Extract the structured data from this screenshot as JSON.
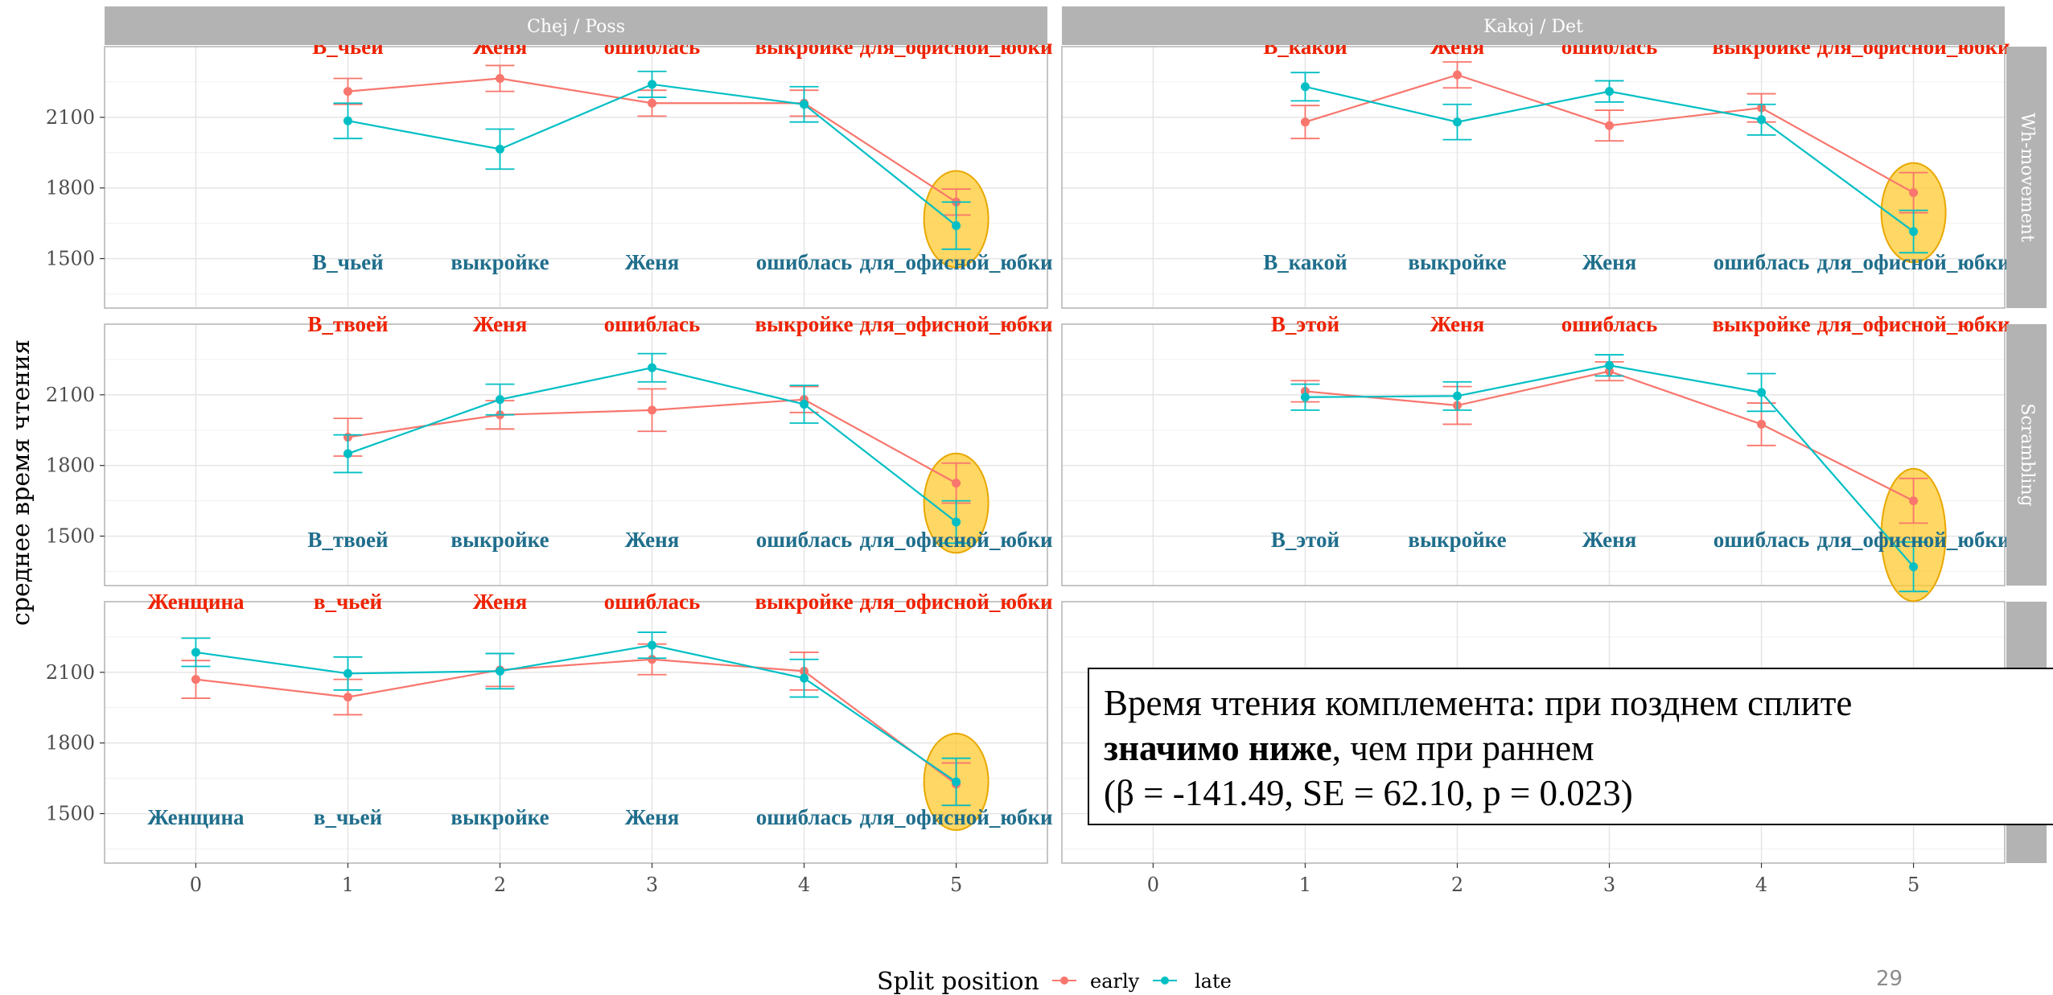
{
  "chart_data": {
    "type": "line",
    "ylabel": "среднее время чтения",
    "x_ticks": [
      0,
      1,
      2,
      3,
      4,
      5
    ],
    "y_ticks": [
      1500,
      1800,
      2100
    ],
    "xlim": [
      -0.6,
      5.6
    ],
    "ylim": [
      1290,
      2400
    ],
    "colors": {
      "early": "#F8766D",
      "late": "#00BFC4"
    },
    "legend": {
      "title": "Split position",
      "placement": "bottom",
      "items": [
        "early",
        "late"
      ]
    },
    "column_strips": [
      "Chej / Poss",
      "Kakoj / Det"
    ],
    "row_strips": [
      "Wh-movement",
      "Scrambling",
      ""
    ],
    "panels": [
      {
        "row": 0,
        "col": 0,
        "x": [
          1,
          2,
          3,
          4,
          5
        ],
        "series": [
          {
            "name": "early",
            "values": [
              2210,
              2265,
              2160,
              2160,
              1740
            ],
            "err": [
              55,
              55,
              55,
              55,
              55
            ]
          },
          {
            "name": "late",
            "values": [
              2085,
              1965,
              2240,
              2155,
              1640
            ],
            "err": [
              75,
              85,
              55,
              75,
              100
            ]
          }
        ],
        "top_words": [
          "В_чьей",
          "Женя",
          "ошиблась",
          "выкройке",
          "для_офисной_юбки"
        ],
        "bottom_words": [
          "В_чьей",
          "выкройке",
          "Женя",
          "ошиблась",
          "для_офисной_юбки"
        ]
      },
      {
        "row": 0,
        "col": 1,
        "x": [
          1,
          2,
          3,
          4,
          5
        ],
        "series": [
          {
            "name": "early",
            "values": [
              2080,
              2280,
              2065,
              2140,
              1780
            ],
            "err": [
              70,
              55,
              65,
              60,
              85
            ]
          },
          {
            "name": "late",
            "values": [
              2230,
              2080,
              2210,
              2090,
              1615
            ],
            "err": [
              60,
              75,
              45,
              65,
              90
            ]
          }
        ],
        "top_words": [
          "В_какой",
          "Женя",
          "ошиблась",
          "выкройке",
          "для_офисной_юбки"
        ],
        "bottom_words": [
          "В_какой",
          "выкройке",
          "Женя",
          "ошиблась",
          "для_офисной_юбки"
        ]
      },
      {
        "row": 1,
        "col": 0,
        "x": [
          1,
          2,
          3,
          4,
          5
        ],
        "series": [
          {
            "name": "early",
            "values": [
              1920,
              2015,
              2035,
              2080,
              1725
            ],
            "err": [
              80,
              60,
              90,
              55,
              85
            ]
          },
          {
            "name": "late",
            "values": [
              1850,
              2080,
              2215,
              2060,
              1560
            ],
            "err": [
              80,
              65,
              60,
              80,
              90
            ]
          }
        ],
        "top_words": [
          "В_твоей",
          "Женя",
          "ошиблась",
          "выкройке",
          "для_офисной_юбки"
        ],
        "bottom_words": [
          "В_твоей",
          "выкройке",
          "Женя",
          "ошиблась",
          "для_офисной_юбки"
        ]
      },
      {
        "row": 1,
        "col": 1,
        "x": [
          1,
          2,
          3,
          4,
          5
        ],
        "series": [
          {
            "name": "early",
            "values": [
              2115,
              2055,
              2200,
              1975,
              1650
            ],
            "err": [
              45,
              80,
              40,
              90,
              95
            ]
          },
          {
            "name": "late",
            "values": [
              2090,
              2095,
              2225,
              2110,
              1370
            ],
            "err": [
              55,
              60,
              45,
              80,
              105
            ]
          }
        ],
        "top_words": [
          "В_этой",
          "Женя",
          "ошиблась",
          "выкройке",
          "для_офисной_юбки"
        ],
        "bottom_words": [
          "В_этой",
          "выкройке",
          "Женя",
          "ошиблась",
          "для_офисной_юбки"
        ]
      },
      {
        "row": 2,
        "col": 0,
        "x": [
          0,
          1,
          2,
          3,
          4,
          5
        ],
        "series": [
          {
            "name": "early",
            "values": [
              2070,
              1995,
              2110,
              2155,
              2105,
              1625
            ],
            "err": [
              80,
              75,
              70,
              65,
              80,
              90
            ]
          },
          {
            "name": "late",
            "values": [
              2185,
              2095,
              2105,
              2215,
              2075,
              1635
            ],
            "err": [
              60,
              70,
              75,
              55,
              80,
              100
            ]
          }
        ],
        "top_words": [
          "Женщина",
          "в_чьей",
          "Женя",
          "ошиблась",
          "выкройке",
          "для_офисной_юбки"
        ],
        "bottom_words": [
          "Женщина",
          "в_чьей",
          "выкройке",
          "Женя",
          "ошиблась",
          "для_офисной_юбки"
        ]
      }
    ],
    "annotation": {
      "line1": "Время чтения комплемента: при позднем сплите",
      "line2_bold": "значимо ниже",
      "line2_rest": ", чем при раннем",
      "line3": "(β = -141.49, SE = 62.10, p = 0.023)"
    }
  },
  "slide_number": "29"
}
